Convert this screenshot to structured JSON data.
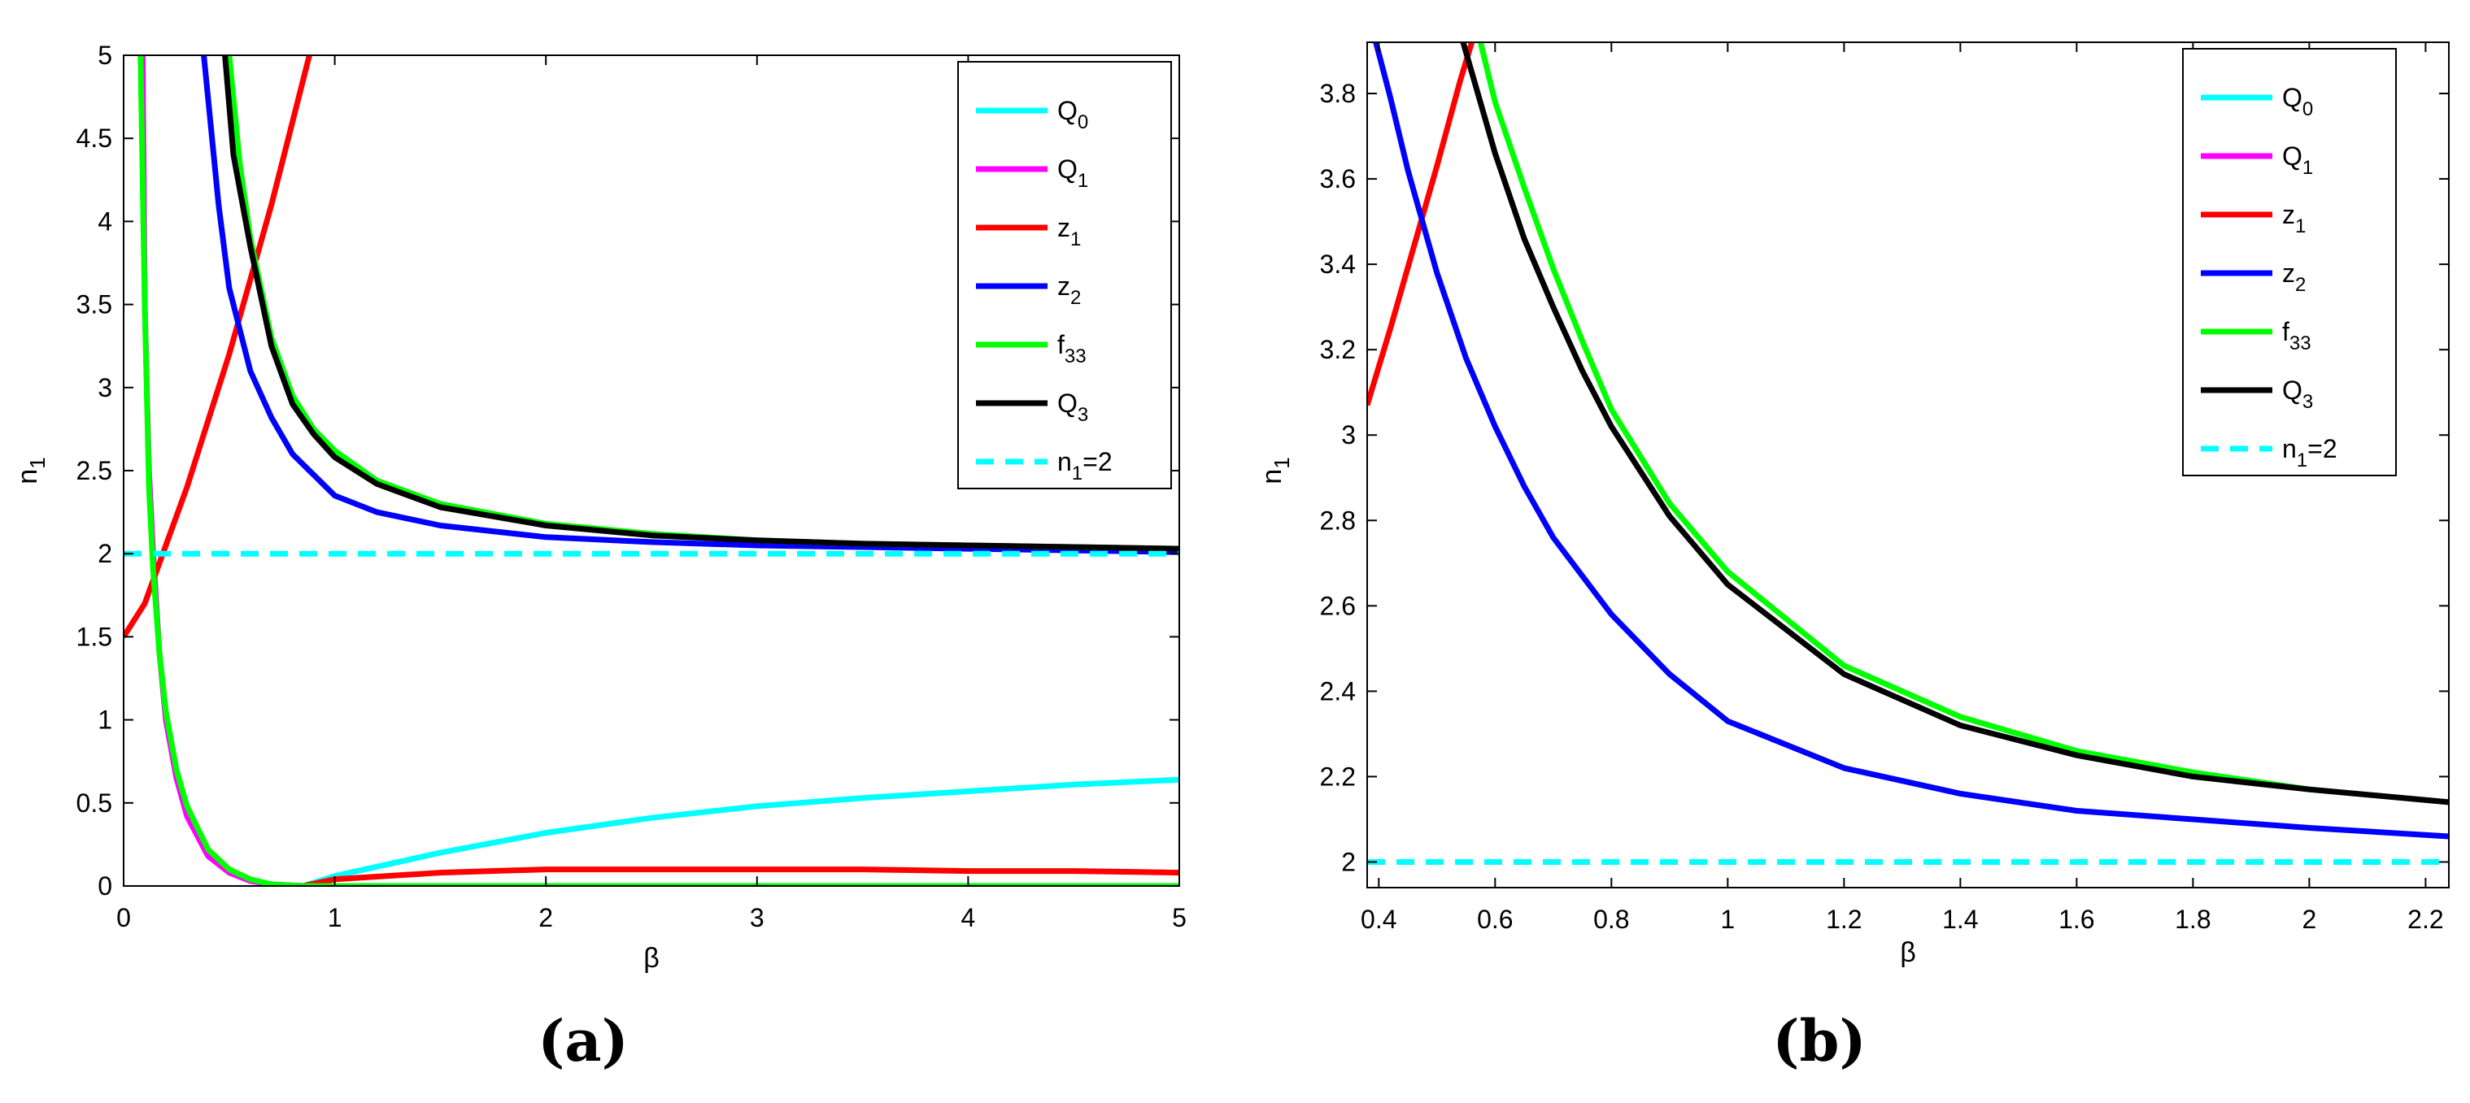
{
  "chart_data": [
    {
      "id": "a",
      "type": "line",
      "panel_label": "(a)",
      "xlabel": "β",
      "ylabel": "n",
      "ylabel_sub": "1",
      "xlim": [
        0,
        5
      ],
      "ylim": [
        0,
        5
      ],
      "xticks": [
        0,
        1,
        2,
        3,
        4,
        5
      ],
      "yticks": [
        0,
        0.5,
        1,
        1.5,
        2,
        2.5,
        3,
        3.5,
        4,
        4.5,
        5
      ],
      "xtick_labels": [
        "0",
        "1",
        "2",
        "3",
        "4",
        "5"
      ],
      "ytick_labels": [
        "0",
        "0.5",
        "1",
        "1.5",
        "2",
        "2.5",
        "3",
        "3.5",
        "4",
        "4.5",
        "5"
      ],
      "grid": false,
      "legend_position": "top-right",
      "series": [
        {
          "key": "Q0",
          "name": "Q",
          "sub": "0",
          "color": "#00ffff",
          "dash": false,
          "points": [
            [
              0.85,
              0
            ],
            [
              1,
              0.06
            ],
            [
              1.5,
              0.2
            ],
            [
              2,
              0.32
            ],
            [
              2.5,
              0.41
            ],
            [
              3,
              0.48
            ],
            [
              3.5,
              0.53
            ],
            [
              4,
              0.57
            ],
            [
              4.5,
              0.61
            ],
            [
              5,
              0.64
            ]
          ]
        },
        {
          "key": "Q1",
          "name": "Q",
          "sub": "1",
          "color": "#ff00ff",
          "dash": false,
          "points": [
            [
              0.09,
              5
            ],
            [
              0.1,
              3.5
            ],
            [
              0.12,
              2.5
            ],
            [
              0.14,
              2
            ],
            [
              0.17,
              1.4
            ],
            [
              0.2,
              1
            ],
            [
              0.25,
              0.65
            ],
            [
              0.3,
              0.42
            ],
            [
              0.4,
              0.18
            ],
            [
              0.5,
              0.08
            ],
            [
              0.6,
              0.03
            ],
            [
              0.7,
              0.01
            ],
            [
              0.85,
              0
            ]
          ]
        },
        {
          "key": "z1",
          "name": "z",
          "sub": "1",
          "color": "#ff0000",
          "dash": false,
          "points": [
            [
              0,
              1.5
            ],
            [
              0.1,
              1.7
            ],
            [
              0.2,
              2.05
            ],
            [
              0.3,
              2.4
            ],
            [
              0.4,
              2.8
            ],
            [
              0.5,
              3.2
            ],
            [
              0.6,
              3.65
            ],
            [
              0.7,
              4.1
            ],
            [
              0.8,
              4.6
            ],
            [
              0.88,
              5
            ],
            [
              null,
              null
            ],
            [
              0.85,
              0
            ],
            [
              1,
              0.04
            ],
            [
              1.5,
              0.08
            ],
            [
              2,
              0.1
            ],
            [
              2.5,
              0.1
            ],
            [
              3,
              0.1
            ],
            [
              3.5,
              0.1
            ],
            [
              4,
              0.09
            ],
            [
              4.5,
              0.09
            ],
            [
              5,
              0.08
            ]
          ]
        },
        {
          "key": "z2",
          "name": "z",
          "sub": "2",
          "color": "#0000ff",
          "dash": false,
          "points": [
            [
              0.38,
              5
            ],
            [
              0.45,
              4.1
            ],
            [
              0.5,
              3.6
            ],
            [
              0.6,
              3.1
            ],
            [
              0.7,
              2.82
            ],
            [
              0.8,
              2.6
            ],
            [
              1,
              2.35
            ],
            [
              1.2,
              2.25
            ],
            [
              1.5,
              2.17
            ],
            [
              2,
              2.1
            ],
            [
              2.5,
              2.07
            ],
            [
              3,
              2.05
            ],
            [
              3.5,
              2.04
            ],
            [
              4,
              2.03
            ],
            [
              4.5,
              2.02
            ],
            [
              5,
              2.01
            ]
          ]
        },
        {
          "key": "f33",
          "name": "f",
          "sub": "33",
          "color": "#00ff00",
          "dash": false,
          "points": [
            [
              0.08,
              5
            ],
            [
              0.1,
              3.5
            ],
            [
              0.12,
              2.4
            ],
            [
              0.14,
              1.9
            ],
            [
              0.17,
              1.4
            ],
            [
              0.2,
              1.05
            ],
            [
              0.25,
              0.7
            ],
            [
              0.3,
              0.48
            ],
            [
              0.4,
              0.22
            ],
            [
              0.5,
              0.1
            ],
            [
              0.6,
              0.04
            ],
            [
              0.7,
              0.01
            ],
            [
              0.85,
              0
            ],
            [
              5,
              0
            ],
            [
              null,
              null
            ],
            [
              0.5,
              5
            ],
            [
              0.55,
              4.35
            ],
            [
              0.6,
              3.9
            ],
            [
              0.7,
              3.3
            ],
            [
              0.8,
              2.95
            ],
            [
              0.9,
              2.75
            ],
            [
              1,
              2.62
            ],
            [
              1.2,
              2.44
            ],
            [
              1.5,
              2.3
            ],
            [
              2,
              2.18
            ],
            [
              2.5,
              2.12
            ],
            [
              3,
              2.08
            ],
            [
              3.5,
              2.06
            ],
            [
              4,
              2.05
            ],
            [
              4.5,
              2.04
            ],
            [
              5,
              2.03
            ]
          ]
        },
        {
          "key": "Q3",
          "name": "Q",
          "sub": "3",
          "color": "#000000",
          "dash": false,
          "points": [
            [
              0.48,
              5
            ],
            [
              0.52,
              4.4
            ],
            [
              0.6,
              3.85
            ],
            [
              0.7,
              3.25
            ],
            [
              0.8,
              2.9
            ],
            [
              0.9,
              2.72
            ],
            [
              1,
              2.58
            ],
            [
              1.2,
              2.42
            ],
            [
              1.5,
              2.28
            ],
            [
              2,
              2.17
            ],
            [
              2.5,
              2.11
            ],
            [
              3,
              2.08
            ],
            [
              3.5,
              2.06
            ],
            [
              4,
              2.05
            ],
            [
              4.5,
              2.04
            ],
            [
              5,
              2.03
            ]
          ]
        },
        {
          "key": "n1eq2",
          "name": "n",
          "sub": "1",
          "suffix": "=2",
          "color": "#00ffff",
          "dash": true,
          "points": [
            [
              0,
              2
            ],
            [
              5,
              2
            ]
          ]
        }
      ]
    },
    {
      "id": "b",
      "type": "line",
      "panel_label": "(b)",
      "xlabel": "β",
      "ylabel": "n",
      "ylabel_sub": "1",
      "xlim": [
        0.38,
        2.24
      ],
      "ylim": [
        1.94,
        3.92
      ],
      "xticks": [
        0.4,
        0.6,
        0.8,
        1,
        1.2,
        1.4,
        1.6,
        1.8,
        2,
        2.2
      ],
      "yticks": [
        2,
        2.2,
        2.4,
        2.6,
        2.8,
        3,
        3.2,
        3.4,
        3.6,
        3.8
      ],
      "xtick_labels": [
        "0.4",
        "0.6",
        "0.8",
        "1",
        "1.2",
        "1.4",
        "1.6",
        "1.8",
        "2",
        "2.2"
      ],
      "ytick_labels": [
        "2",
        "2.2",
        "2.4",
        "2.6",
        "2.8",
        "3",
        "3.2",
        "3.4",
        "3.6",
        "3.8"
      ],
      "grid": false,
      "legend_position": "top-right",
      "series": [
        {
          "key": "Q0",
          "name": "Q",
          "sub": "0",
          "color": "#00ffff",
          "dash": false,
          "points": []
        },
        {
          "key": "Q1",
          "name": "Q",
          "sub": "1",
          "color": "#ff00ff",
          "dash": false,
          "points": []
        },
        {
          "key": "z1",
          "name": "z",
          "sub": "1",
          "color": "#ff0000",
          "dash": false,
          "points": [
            [
              0.38,
              3.07
            ],
            [
              0.42,
              3.25
            ],
            [
              0.46,
              3.44
            ],
            [
              0.5,
              3.63
            ],
            [
              0.54,
              3.83
            ],
            [
              0.56,
              3.92
            ]
          ]
        },
        {
          "key": "z2",
          "name": "z",
          "sub": "2",
          "color": "#0000ff",
          "dash": false,
          "points": [
            [
              0.395,
              3.92
            ],
            [
              0.42,
              3.79
            ],
            [
              0.45,
              3.62
            ],
            [
              0.5,
              3.38
            ],
            [
              0.55,
              3.18
            ],
            [
              0.6,
              3.02
            ],
            [
              0.65,
              2.88
            ],
            [
              0.7,
              2.76
            ],
            [
              0.8,
              2.58
            ],
            [
              0.9,
              2.44
            ],
            [
              1,
              2.33
            ],
            [
              1.2,
              2.22
            ],
            [
              1.4,
              2.16
            ],
            [
              1.6,
              2.12
            ],
            [
              1.8,
              2.1
            ],
            [
              2,
              2.08
            ],
            [
              2.24,
              2.06
            ]
          ]
        },
        {
          "key": "f33",
          "name": "f",
          "sub": "33",
          "color": "#00ff00",
          "dash": false,
          "points": [
            [
              0.575,
              3.92
            ],
            [
              0.6,
              3.78
            ],
            [
              0.65,
              3.58
            ],
            [
              0.7,
              3.39
            ],
            [
              0.75,
              3.22
            ],
            [
              0.8,
              3.06
            ],
            [
              0.9,
              2.84
            ],
            [
              1,
              2.68
            ],
            [
              1.2,
              2.46
            ],
            [
              1.4,
              2.34
            ],
            [
              1.6,
              2.26
            ],
            [
              1.8,
              2.21
            ],
            [
              2,
              2.17
            ],
            [
              2.24,
              2.14
            ]
          ]
        },
        {
          "key": "Q3",
          "name": "Q",
          "sub": "3",
          "color": "#000000",
          "dash": false,
          "points": [
            [
              0.545,
              3.92
            ],
            [
              0.6,
              3.66
            ],
            [
              0.65,
              3.46
            ],
            [
              0.7,
              3.3
            ],
            [
              0.75,
              3.15
            ],
            [
              0.8,
              3.02
            ],
            [
              0.9,
              2.81
            ],
            [
              1,
              2.65
            ],
            [
              1.2,
              2.44
            ],
            [
              1.4,
              2.32
            ],
            [
              1.6,
              2.25
            ],
            [
              1.8,
              2.2
            ],
            [
              2,
              2.17
            ],
            [
              2.24,
              2.14
            ]
          ]
        },
        {
          "key": "n1eq2",
          "name": "n",
          "sub": "1",
          "suffix": "=2",
          "color": "#00ffff",
          "dash": true,
          "points": [
            [
              0.38,
              2
            ],
            [
              2.24,
              2
            ]
          ]
        }
      ]
    }
  ]
}
